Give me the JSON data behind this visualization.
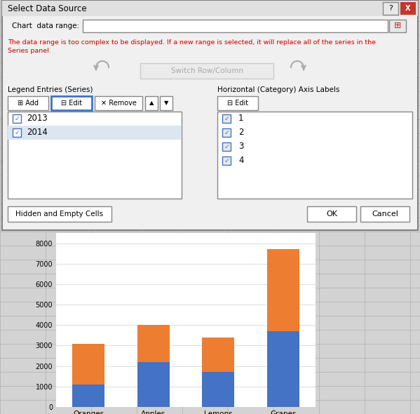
{
  "categories": [
    "Oranges",
    "Apples",
    "Lemons",
    "Grapes"
  ],
  "series_2013": [
    1100,
    2200,
    1700,
    3700
  ],
  "series_2014": [
    2000,
    1800,
    1700,
    4000
  ],
  "color_2013": "#4472C4",
  "color_2014": "#ED7D31",
  "ylim": [
    0,
    8500
  ],
  "yticks": [
    0,
    1000,
    2000,
    3000,
    4000,
    5000,
    6000,
    7000,
    8000
  ],
  "dialog_bg": "#F0F0F0",
  "excel_bg": "#D3D3D3",
  "grid_color": "#C0C0C0",
  "dialog_border": "#999999",
  "warning_color": "#CC0000",
  "checkbox_color": "#4472C4",
  "edit_btn_border": "#4472C4",
  "title_bar_bg": "#E8E8E8",
  "close_btn_bg": "#C0392B",
  "input_bg": "#FFFFFF",
  "series_entries": [
    "2013",
    "2014"
  ],
  "axis_entries": [
    "1",
    "2",
    "3",
    "4"
  ]
}
